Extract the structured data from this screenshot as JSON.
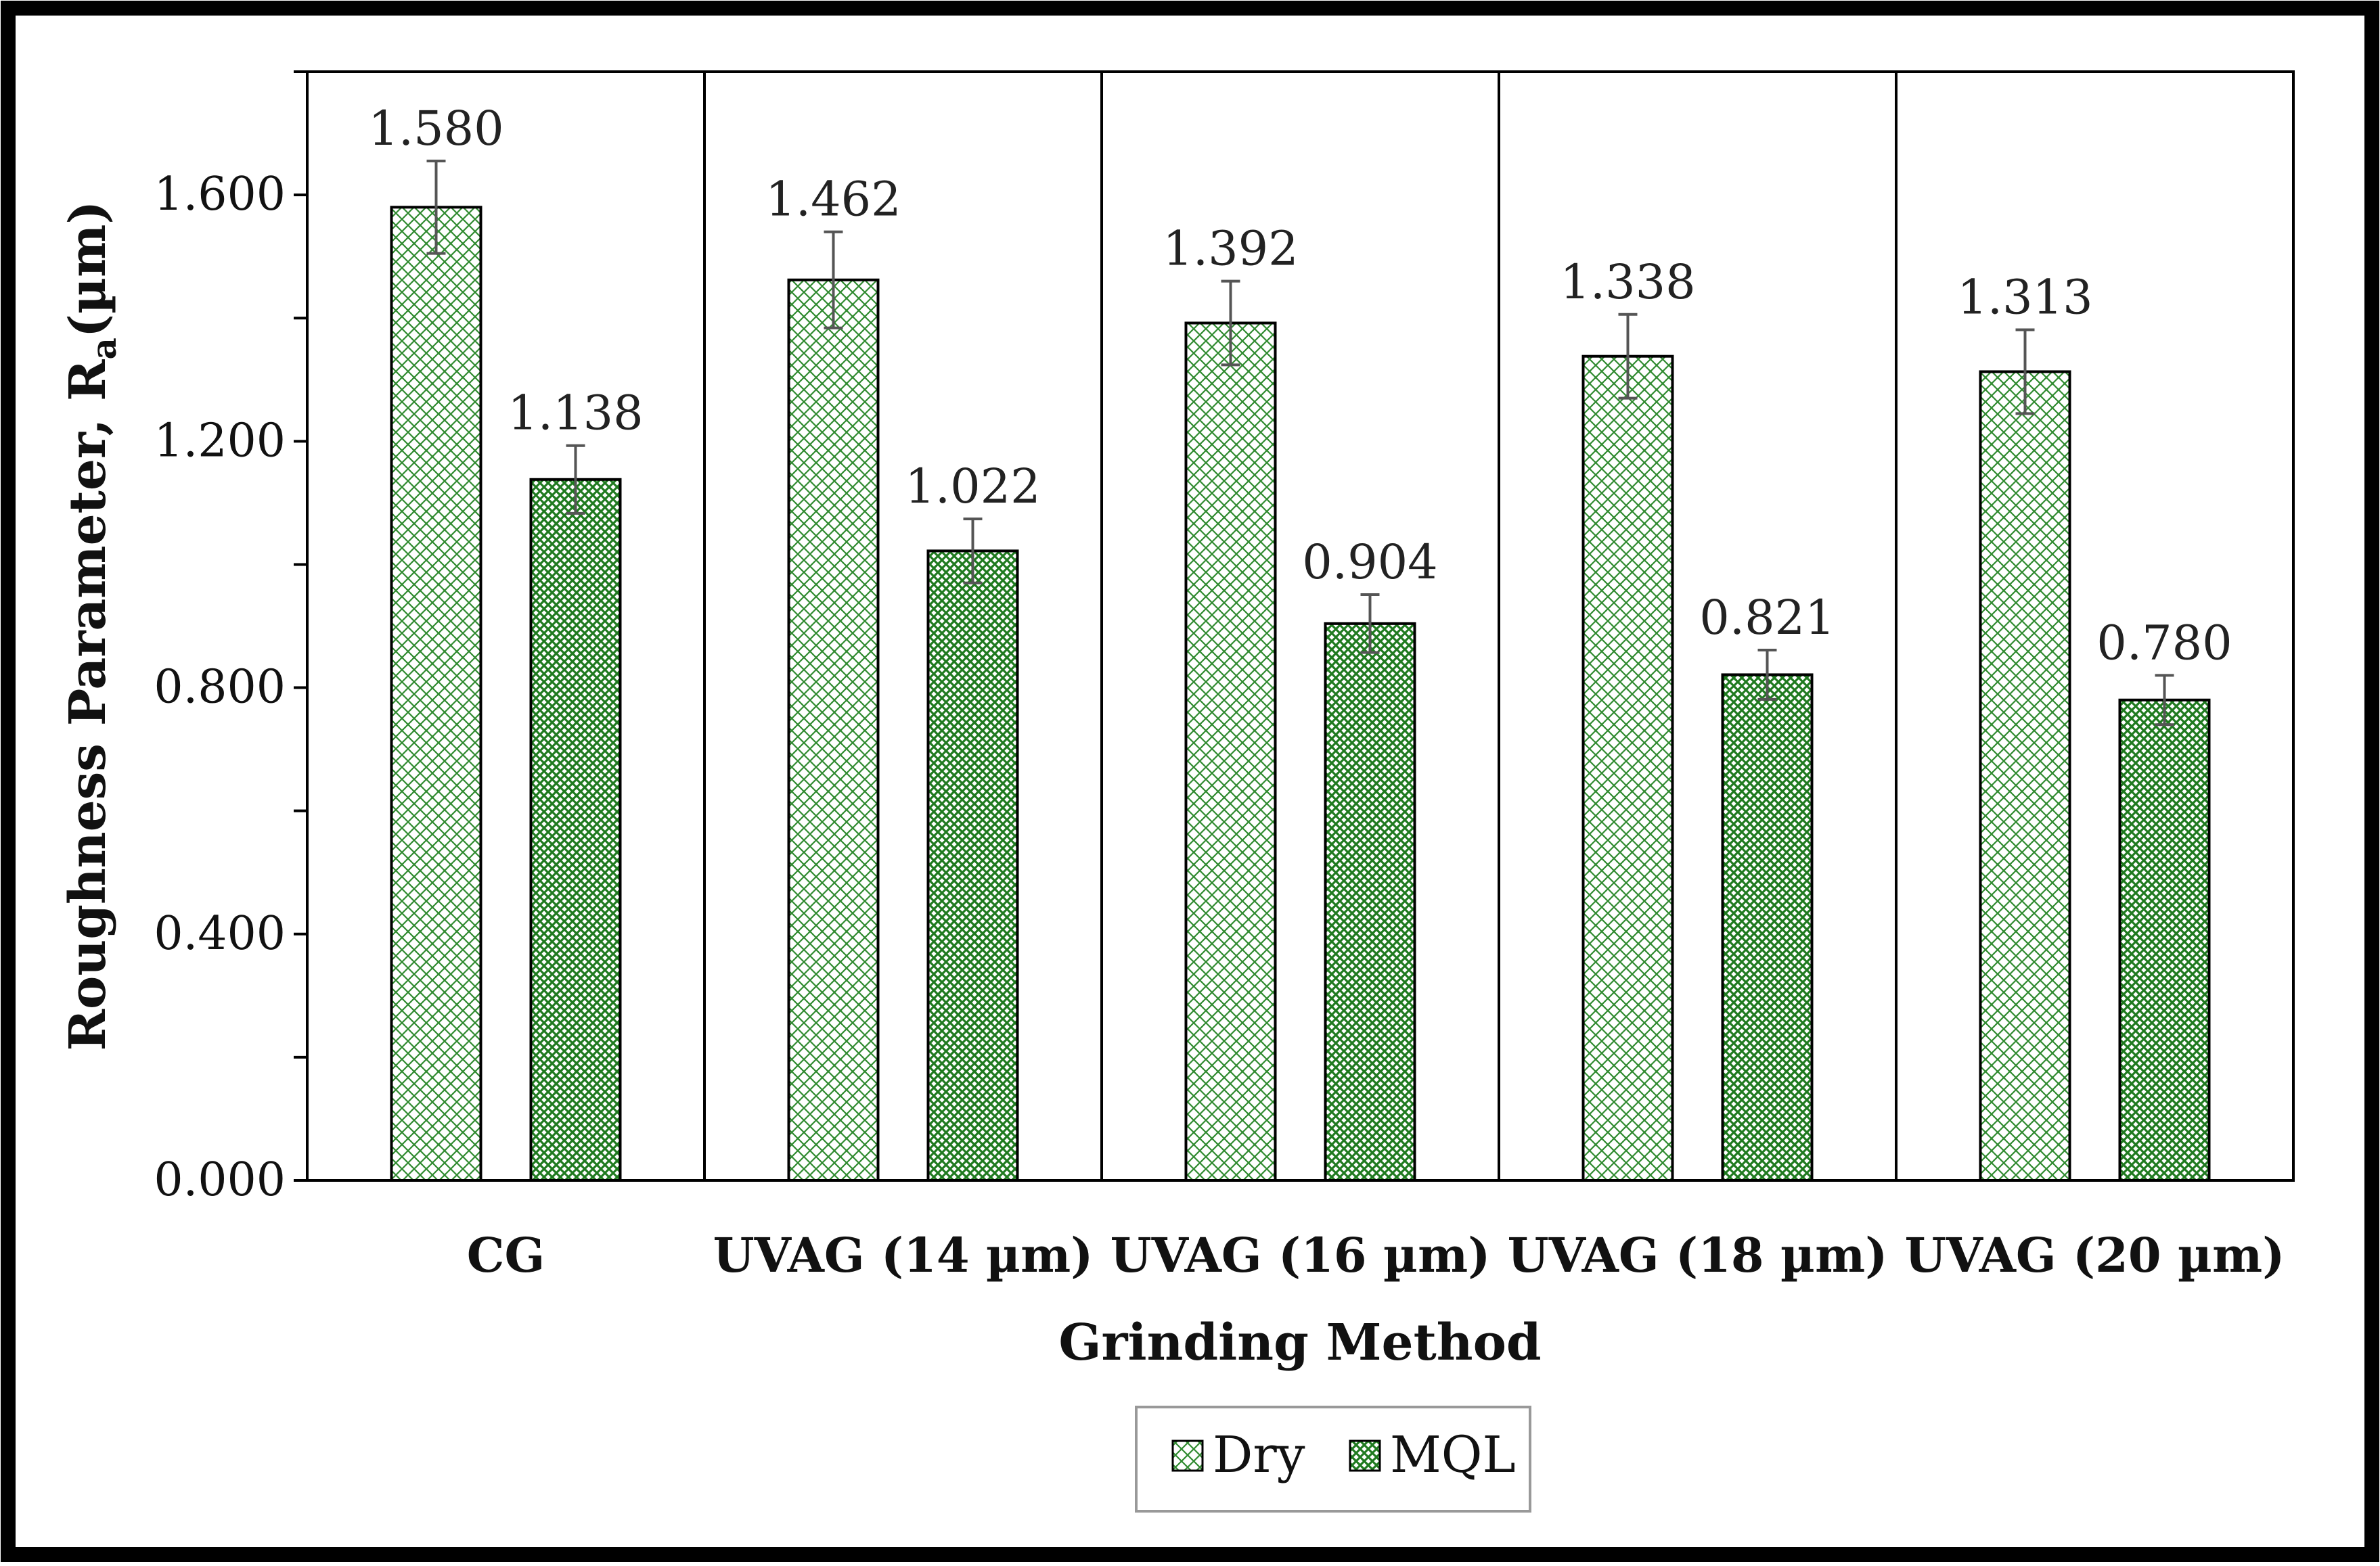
{
  "chart_data": {
    "type": "bar",
    "categories": [
      "CG",
      "UVAG (14 µm)",
      "UVAG (16 µm)",
      "UVAG (18 µm)",
      "UVAG (20 µm)"
    ],
    "series": [
      {
        "name": "Dry",
        "values": [
          1.58,
          1.462,
          1.392,
          1.338,
          1.313
        ],
        "labels": [
          "1.580",
          "1.462",
          "1.392",
          "1.338",
          "1.313"
        ],
        "errors": [
          0.075,
          0.078,
          0.068,
          0.068,
          0.068
        ],
        "pattern": "light-crosshatch"
      },
      {
        "name": "MQL",
        "values": [
          1.138,
          1.022,
          0.904,
          0.821,
          0.78
        ],
        "labels": [
          "1.138",
          "1.022",
          "0.904",
          "0.821",
          "0.780"
        ],
        "errors": [
          0.055,
          0.052,
          0.047,
          0.04,
          0.04
        ],
        "pattern": "dense-crosshatch"
      }
    ],
    "xlabel": "Grinding Method",
    "ylabel_main": "Roughness Parameter, R",
    "ylabel_sub": "a",
    "ylabel_unit": "(µm)",
    "ylim": [
      0,
      1.8
    ],
    "yticks": [
      0.0,
      0.4,
      0.8,
      1.2,
      1.6
    ],
    "ytick_labels": [
      "0.000",
      "0.400",
      "0.800",
      "1.200",
      "1.600"
    ],
    "minor_yticks": [
      0.2,
      0.6,
      1.0,
      1.4,
      1.8
    ],
    "legend": [
      "Dry",
      "MQL"
    ],
    "legend_position": "bottom-center",
    "grid": false
  },
  "colors": {
    "accent_green": "#2f8a2f",
    "dark_green": "#1a5e1a",
    "frame": "#000000",
    "error_bar": "#555555"
  }
}
